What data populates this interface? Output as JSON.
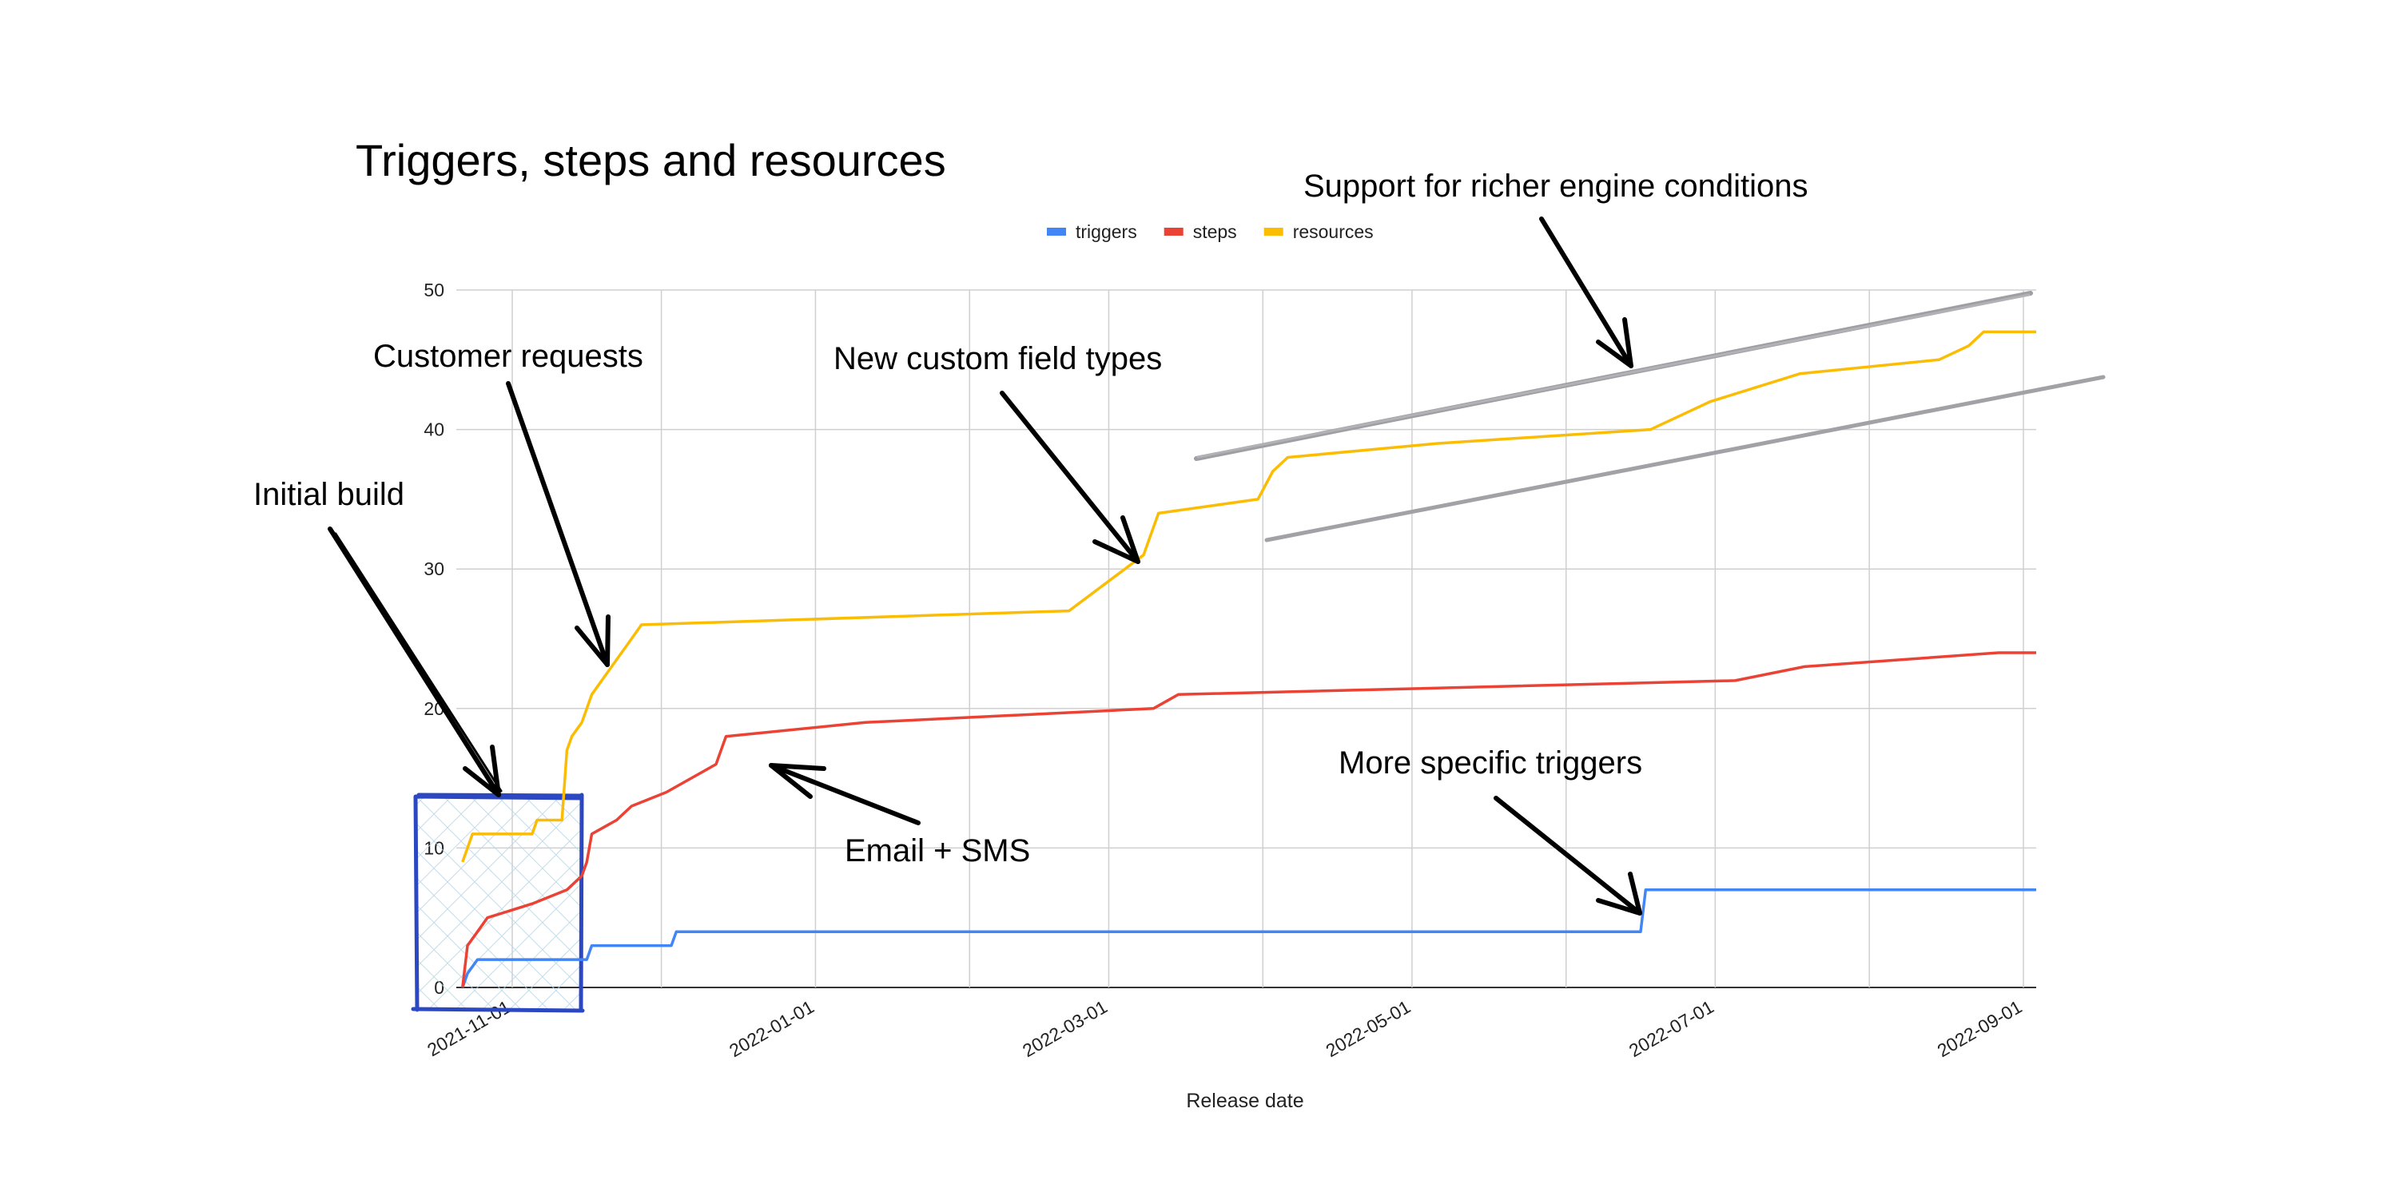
{
  "chart_data": {
    "type": "line",
    "title": "Triggers, steps and resources",
    "xlabel": "Release date",
    "ylabel": "",
    "x_axis_type": "date",
    "xlim": [
      "2021-10-22",
      "2022-09-01"
    ],
    "ylim": [
      0,
      50
    ],
    "y_ticks": [
      0,
      10,
      20,
      30,
      40,
      50
    ],
    "x_ticks": [
      "2021-11-01",
      "2022-01-01",
      "2022-03-01",
      "2022-05-01",
      "2022-07-01",
      "2022-09-01"
    ],
    "grid": true,
    "legend_position": "top-center",
    "series": [
      {
        "name": "triggers",
        "color": "#4285f4",
        "points": [
          [
            "2021-10-22",
            0
          ],
          [
            "2021-10-23",
            1
          ],
          [
            "2021-10-25",
            2
          ],
          [
            "2021-11-06",
            2
          ],
          [
            "2021-11-16",
            2
          ],
          [
            "2021-11-17",
            3
          ],
          [
            "2021-12-03",
            3
          ],
          [
            "2021-12-04",
            4
          ],
          [
            "2022-06-16",
            4
          ],
          [
            "2022-06-17",
            7
          ],
          [
            "2022-09-04",
            7
          ]
        ]
      },
      {
        "name": "steps",
        "color": "#ea4335",
        "points": [
          [
            "2021-10-22",
            0
          ],
          [
            "2021-10-23",
            3
          ],
          [
            "2021-10-25",
            4
          ],
          [
            "2021-10-27",
            5
          ],
          [
            "2021-11-05",
            6
          ],
          [
            "2021-11-12",
            7
          ],
          [
            "2021-11-15",
            8
          ],
          [
            "2021-11-16",
            9
          ],
          [
            "2021-11-17",
            11
          ],
          [
            "2021-11-22",
            12
          ],
          [
            "2021-11-25",
            13
          ],
          [
            "2021-12-02",
            14
          ],
          [
            "2021-12-12",
            16
          ],
          [
            "2021-12-14",
            18
          ],
          [
            "2022-01-11",
            19
          ],
          [
            "2022-03-10",
            20
          ],
          [
            "2022-03-15",
            21
          ],
          [
            "2022-07-05",
            22
          ],
          [
            "2022-07-19",
            23
          ],
          [
            "2022-08-27",
            24
          ],
          [
            "2022-09-04",
            24
          ]
        ]
      },
      {
        "name": "resources",
        "color": "#fbbc04",
        "points": [
          [
            "2021-10-22",
            9
          ],
          [
            "2021-10-23",
            10
          ],
          [
            "2021-10-24",
            11
          ],
          [
            "2021-11-05",
            11
          ],
          [
            "2021-11-06",
            12
          ],
          [
            "2021-11-11",
            12
          ],
          [
            "2021-11-12",
            17
          ],
          [
            "2021-11-13",
            18
          ],
          [
            "2021-11-15",
            19
          ],
          [
            "2021-11-17",
            21
          ],
          [
            "2021-11-21",
            23
          ],
          [
            "2021-11-25",
            25
          ],
          [
            "2021-11-27",
            26
          ],
          [
            "2022-02-21",
            27
          ],
          [
            "2022-03-08",
            31
          ],
          [
            "2022-03-11",
            34
          ],
          [
            "2022-03-31",
            35
          ],
          [
            "2022-04-03",
            37
          ],
          [
            "2022-04-06",
            38
          ],
          [
            "2022-05-06",
            39
          ],
          [
            "2022-06-18",
            40
          ],
          [
            "2022-06-30",
            42
          ],
          [
            "2022-07-18",
            44
          ],
          [
            "2022-08-15",
            45
          ],
          [
            "2022-08-21",
            46
          ],
          [
            "2022-08-24",
            47
          ],
          [
            "2022-09-04",
            47
          ]
        ]
      }
    ],
    "annotations": [
      "Initial build",
      "Customer requests",
      "New custom field types",
      "Support for richer engine conditions",
      "Email + SMS",
      "More specific triggers"
    ]
  }
}
